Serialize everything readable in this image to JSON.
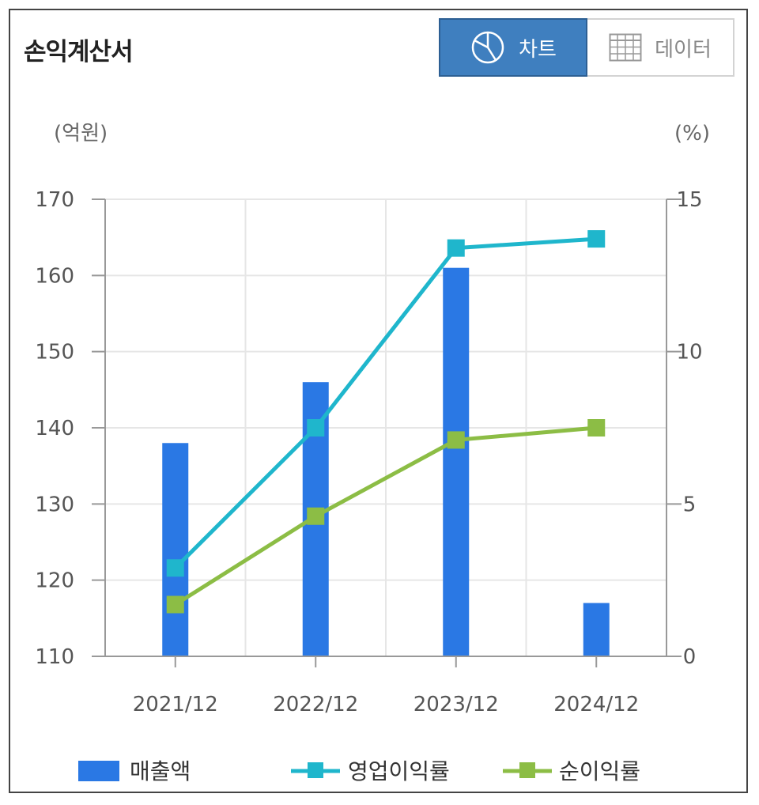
{
  "header": {
    "title": "손익계산서",
    "chart_label": "차트",
    "data_label": "데이터"
  },
  "colors": {
    "bar": "#2a78e4",
    "operating_margin": "#1fb6cc",
    "net_margin": "#8cbd45",
    "toggle_active": "#3f7fbf"
  },
  "chart_data": {
    "type": "bar",
    "categories": [
      "2021/12",
      "2022/12",
      "2023/12",
      "2024/12"
    ],
    "left_unit": "(억원)",
    "right_unit": "(%)",
    "left_ylim": [
      110,
      170
    ],
    "left_ticks": [
      "170",
      "160",
      "150",
      "140",
      "130",
      "120",
      "110"
    ],
    "right_ylim": [
      0,
      15
    ],
    "right_ticks": [
      "15",
      "10",
      "5",
      "0"
    ],
    "series": [
      {
        "name": "매출액",
        "type": "bar",
        "axis": "left",
        "values": [
          138,
          146,
          161,
          117
        ]
      },
      {
        "name": "영업이익률",
        "type": "line",
        "axis": "right",
        "values": [
          2.9,
          7.5,
          13.4,
          13.7
        ]
      },
      {
        "name": "순이익률",
        "type": "line",
        "axis": "right",
        "values": [
          1.7,
          4.6,
          7.1,
          7.5
        ]
      }
    ]
  }
}
